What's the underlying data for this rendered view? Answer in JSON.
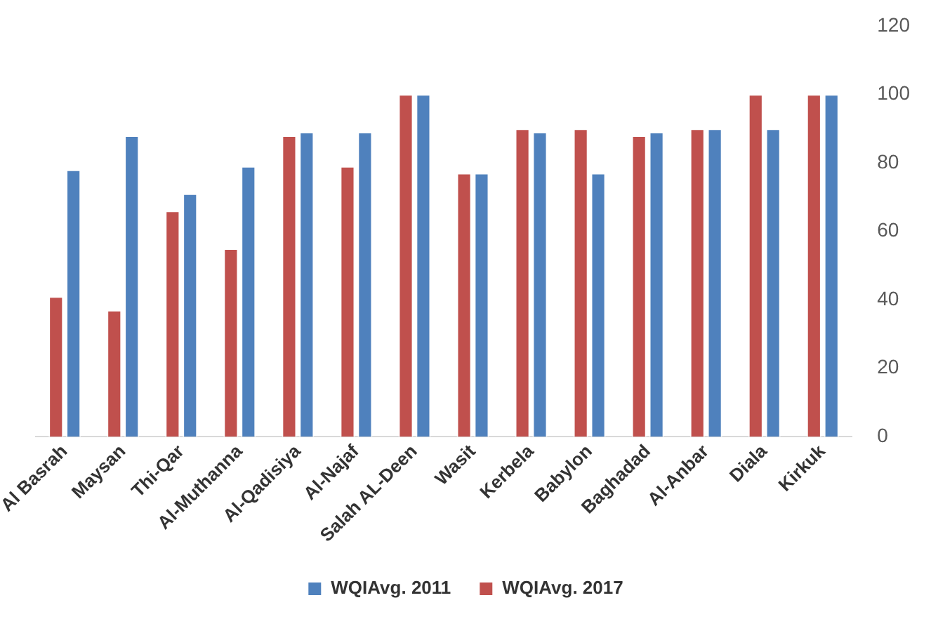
{
  "chart_data": {
    "type": "bar",
    "categories": [
      "Al Basrah",
      "Maysan",
      "Thi-Qar",
      "Al-Muthanna",
      "Al-Qadisiya",
      "Al-Najaf",
      "Salah AL-Deen",
      "Wasit",
      "Kerbela",
      "Babylon",
      "Baghadad",
      "Al-Anbar",
      "Diala",
      "Kirkuk"
    ],
    "series": [
      {
        "name": "WQIAvg. 2017",
        "color": "#c0504d",
        "values": [
          41,
          37,
          66,
          55,
          88,
          79,
          100,
          77,
          90,
          90,
          88,
          90,
          100,
          100
        ]
      },
      {
        "name": "WQIAvg. 2011",
        "color": "#4f81bd",
        "values": [
          78,
          88,
          71,
          79,
          89,
          89,
          100,
          77,
          89,
          77,
          89,
          90,
          90,
          100
        ]
      }
    ],
    "ylim": [
      0,
      120
    ],
    "yticks": [
      0,
      20,
      40,
      60,
      80,
      100,
      120
    ],
    "grid": false,
    "legend": "bottom"
  }
}
